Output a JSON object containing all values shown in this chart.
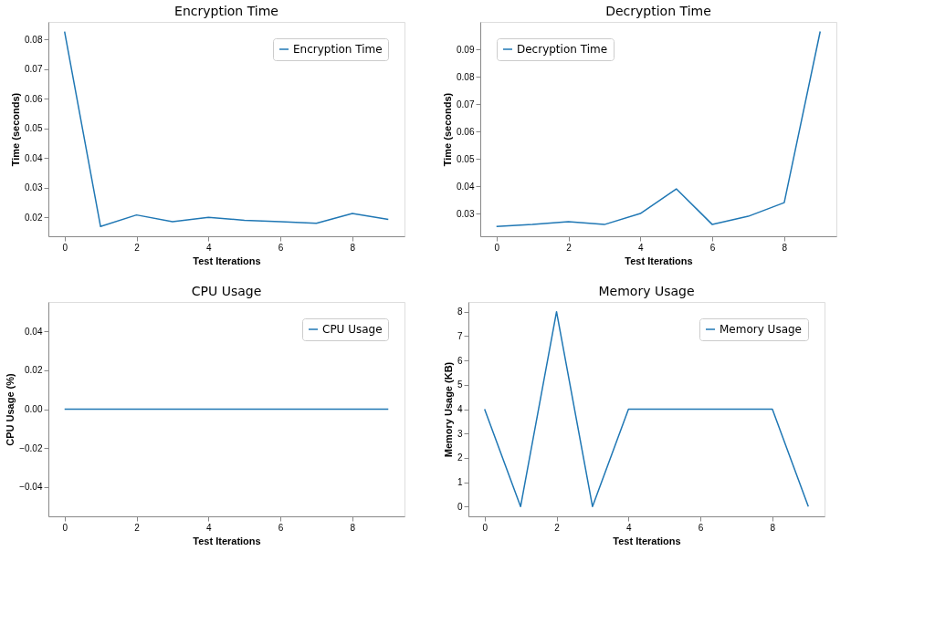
{
  "chart_data": [
    {
      "type": "line",
      "title": "Encryption Time",
      "xlabel": "Test Iterations",
      "ylabel": "Time (seconds)",
      "x": [
        0,
        1,
        2,
        3,
        4,
        5,
        6,
        7,
        8,
        9
      ],
      "xlim": [
        -0.45,
        9.45
      ],
      "xticks": [
        0,
        2,
        4,
        6,
        8
      ],
      "ylim": [
        0.0136,
        0.086
      ],
      "yticks": [
        0.02,
        0.03,
        0.04,
        0.05,
        0.06,
        0.07,
        0.08
      ],
      "grid": false,
      "legend": "top right",
      "series": [
        {
          "name": "Encryption Time",
          "color": "#1f77b4",
          "values": [
            0.0827,
            0.0169,
            0.0208,
            0.0185,
            0.02,
            0.019,
            0.0185,
            0.018,
            0.0213,
            0.0193
          ]
        }
      ]
    },
    {
      "type": "line",
      "title": "Decryption Time",
      "xlabel": "Test Iterations",
      "ylabel": "Time (seconds)",
      "x": [
        0,
        1,
        2,
        3,
        4,
        5,
        6,
        7,
        8,
        9
      ],
      "xlim": [
        -0.45,
        9.45
      ],
      "xticks": [
        0,
        2,
        4,
        6,
        8
      ],
      "ylim": [
        0.0217,
        0.1
      ],
      "yticks": [
        0.03,
        0.04,
        0.05,
        0.06,
        0.07,
        0.08,
        0.09
      ],
      "grid": false,
      "legend": "top left",
      "series": [
        {
          "name": "Decryption Time",
          "color": "#1f77b4",
          "values": [
            0.0253,
            0.026,
            0.027,
            0.026,
            0.03,
            0.039,
            0.026,
            0.029,
            0.034,
            0.0965
          ]
        }
      ]
    },
    {
      "type": "line",
      "title": "CPU Usage",
      "xlabel": "Test Iterations",
      "ylabel": "CPU Usage (%)",
      "x": [
        0,
        1,
        2,
        3,
        4,
        5,
        6,
        7,
        8,
        9
      ],
      "xlim": [
        -0.45,
        9.45
      ],
      "xticks": [
        0,
        2,
        4,
        6,
        8
      ],
      "ylim": [
        -0.055,
        0.055
      ],
      "yticks": [
        {
          "value": -0.04,
          "label": "−0.04"
        },
        {
          "value": -0.02,
          "label": "−0.02"
        },
        {
          "value": 0,
          "label": "0.00"
        },
        {
          "value": 0.02,
          "label": "0.02"
        },
        {
          "value": 0.04,
          "label": "0.04"
        }
      ],
      "grid": false,
      "legend": "top right",
      "series": [
        {
          "name": "CPU Usage",
          "color": "#1f77b4",
          "values": [
            0,
            0,
            0,
            0,
            0,
            0,
            0,
            0,
            0,
            0
          ]
        }
      ]
    },
    {
      "type": "line",
      "title": "Memory Usage",
      "xlabel": "Test Iterations",
      "ylabel": "Memory Usage (KB)",
      "x": [
        0,
        1,
        2,
        3,
        4,
        5,
        6,
        7,
        8,
        9
      ],
      "xlim": [
        -0.45,
        9.45
      ],
      "xticks": [
        0,
        2,
        4,
        6,
        8
      ],
      "ylim": [
        -0.4,
        8.4
      ],
      "yticks": [
        0,
        1,
        2,
        3,
        4,
        5,
        6,
        7,
        8
      ],
      "grid": false,
      "legend": "top right",
      "series": [
        {
          "name": "Memory Usage",
          "color": "#1f77b4",
          "values": [
            4,
            0,
            8,
            0,
            4,
            4,
            4,
            4,
            4,
            0
          ]
        }
      ]
    }
  ]
}
